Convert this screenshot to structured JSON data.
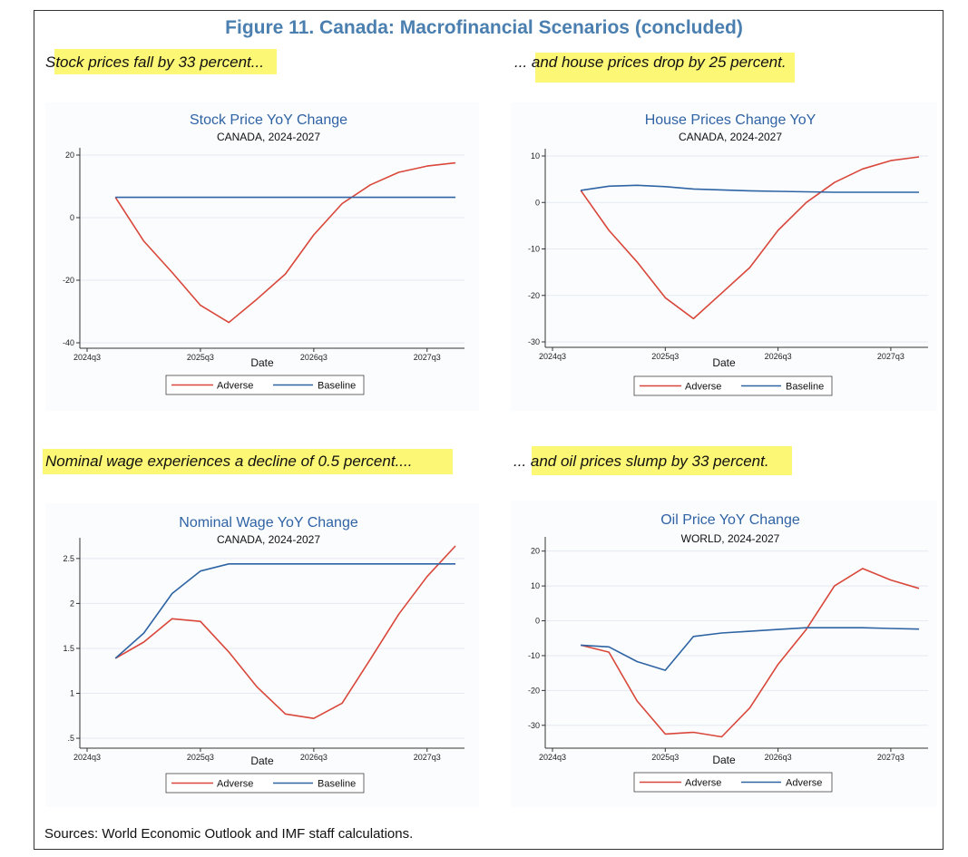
{
  "figure_title": "Figure 11. Canada: Macrofinancial Scenarios (concluded)",
  "captions": [
    "Stock prices fall by 33 percent...",
    "... and house prices drop by 25 percent.",
    "Nominal wage experiences a decline of 0.5 percent....",
    "... and oil prices slump by 33 percent."
  ],
  "sources": "Sources: World Economic Outlook and IMF staff calculations.",
  "colors": {
    "adverse": "#d9473a",
    "baseline": "#2e64a3",
    "title": "#4a7fb0",
    "highlight": "#fbf65c"
  },
  "chart_data": [
    {
      "type": "line",
      "title": "Stock Price YoY Change",
      "subtitle": "CANADA, 2024-2027",
      "xlabel": "Date",
      "ylabel": "",
      "x_ticks": [
        "2024q3",
        "2025q3",
        "2026q3",
        "2027q3"
      ],
      "x": [
        "2024q4",
        "2025q1",
        "2025q2",
        "2025q3",
        "2025q4",
        "2026q1",
        "2026q2",
        "2026q3",
        "2026q4",
        "2027q1",
        "2027q2",
        "2027q3",
        "2027q4"
      ],
      "ylim": [
        -40,
        20
      ],
      "y_ticks": [
        -40,
        -20,
        0,
        20
      ],
      "grid": true,
      "legend": "bottom",
      "series": [
        {
          "name": "Adverse",
          "values": [
            6.5,
            -7.5,
            -17.5,
            -28,
            -33.5,
            -26,
            -18,
            -5.5,
            4.5,
            10.5,
            14.5,
            16.5,
            17.5
          ]
        },
        {
          "name": "Baseline",
          "values": [
            6.5,
            6.5,
            6.5,
            6.5,
            6.5,
            6.5,
            6.5,
            6.5,
            6.5,
            6.5,
            6.5,
            6.5,
            6.5
          ]
        }
      ]
    },
    {
      "type": "line",
      "title": "House Prices Change YoY",
      "subtitle": "CANADA, 2024-2027",
      "xlabel": "Date",
      "ylabel": "",
      "x_ticks": [
        "2024q3",
        "2025q3",
        "2026q3",
        "2027q3"
      ],
      "x": [
        "2024q4",
        "2025q1",
        "2025q2",
        "2025q3",
        "2025q4",
        "2026q1",
        "2026q2",
        "2026q3",
        "2026q4",
        "2027q1",
        "2027q2",
        "2027q3",
        "2027q4"
      ],
      "ylim": [
        -30,
        10
      ],
      "y_ticks": [
        -30,
        -20,
        -10,
        0,
        10
      ],
      "grid": true,
      "legend": "bottom",
      "series": [
        {
          "name": "Adverse",
          "values": [
            2.6,
            -6,
            -12.8,
            -20.5,
            -25,
            -19.5,
            -14,
            -6,
            0,
            4.3,
            7.2,
            9,
            9.8
          ]
        },
        {
          "name": "Baseline",
          "values": [
            2.6,
            3.5,
            3.7,
            3.4,
            2.9,
            2.7,
            2.5,
            2.4,
            2.3,
            2.2,
            2.2,
            2.2,
            2.2
          ]
        }
      ]
    },
    {
      "type": "line",
      "title": "Nominal Wage YoY Change",
      "subtitle": "CANADA, 2024-2027",
      "xlabel": "Date",
      "ylabel": "",
      "x_ticks": [
        "2024q3",
        "2025q3",
        "2026q3",
        "2027q3"
      ],
      "y_tick_labels": [
        ".5",
        "1",
        "1.5",
        "2",
        "2.5"
      ],
      "x": [
        "2024q4",
        "2025q1",
        "2025q2",
        "2025q3",
        "2025q4",
        "2026q1",
        "2026q2",
        "2026q3",
        "2026q4",
        "2027q1",
        "2027q2",
        "2027q3",
        "2027q4"
      ],
      "ylim": [
        0.45,
        2.65
      ],
      "y_ticks": [
        0.5,
        1,
        1.5,
        2,
        2.5
      ],
      "grid": true,
      "legend": "bottom",
      "series": [
        {
          "name": "Adverse",
          "values": [
            1.39,
            1.57,
            1.83,
            1.8,
            1.46,
            1.07,
            0.77,
            0.72,
            0.89,
            1.38,
            1.88,
            2.3,
            2.64
          ]
        },
        {
          "name": "Baseline",
          "values": [
            1.39,
            1.67,
            2.11,
            2.36,
            2.44,
            2.44,
            2.44,
            2.44,
            2.44,
            2.44,
            2.44,
            2.44,
            2.44
          ]
        }
      ]
    },
    {
      "type": "line",
      "title": "Oil Price YoY Change",
      "subtitle": "WORLD, 2024-2027",
      "xlabel": "Date",
      "ylabel": "",
      "x_ticks": [
        "2024q3",
        "2025q3",
        "2026q3",
        "2027q3"
      ],
      "x": [
        "2024q4",
        "2025q1",
        "2025q2",
        "2025q3",
        "2025q4",
        "2026q1",
        "2026q2",
        "2026q3",
        "2026q4",
        "2027q1",
        "2027q2",
        "2027q3",
        "2027q4"
      ],
      "ylim": [
        -35,
        22
      ],
      "y_ticks": [
        -30,
        -20,
        -10,
        0,
        10,
        20
      ],
      "grid": true,
      "legend": "bottom",
      "series": [
        {
          "name": "Adverse",
          "values": [
            -7,
            -9,
            -23,
            -32.5,
            -32,
            -33.3,
            -25,
            -12.5,
            -2.5,
            10,
            15,
            11.7,
            9.3
          ]
        },
        {
          "name": "Adverse",
          "values": [
            -7,
            -7.5,
            -11.7,
            -14.2,
            -4.5,
            -3.5,
            -3,
            -2.5,
            -2,
            -2,
            -2,
            -2.2,
            -2.4
          ]
        }
      ]
    }
  ]
}
